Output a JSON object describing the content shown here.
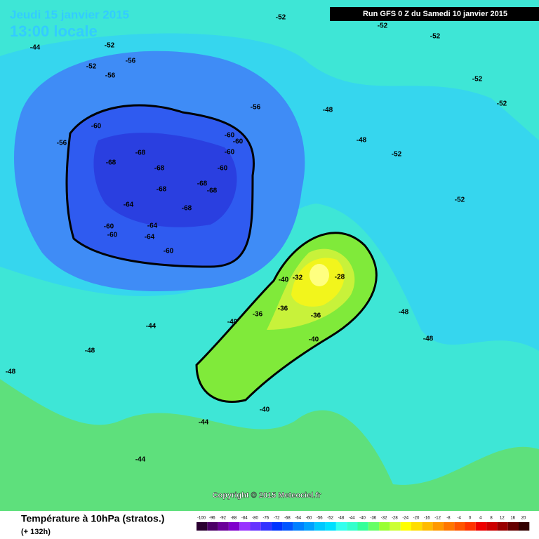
{
  "header": {
    "date": "Jeudi 15 janvier 2015",
    "time": "13:00 locale",
    "run": "Run GFS 0 Z du Samedi 10 janvier 2015"
  },
  "footer": {
    "title": "Température à 10hPa (stratos.)",
    "lead": "(+ 132h)",
    "copyright": "Copyright © 2015 Meteociel.fr"
  },
  "legend": {
    "ticks": [
      -100,
      -96,
      -92,
      -88,
      -84,
      -80,
      -76,
      -72,
      -68,
      -64,
      -60,
      -56,
      -52,
      -48,
      -44,
      -40,
      -36,
      -32,
      -28,
      -24,
      -20,
      -16,
      -12,
      -8,
      -4,
      0,
      4,
      8,
      12,
      16,
      20
    ],
    "colors": [
      "#2a0030",
      "#4b0066",
      "#6a0099",
      "#8000cc",
      "#9933ff",
      "#6633ff",
      "#3333ff",
      "#0033ff",
      "#0055ff",
      "#0080ff",
      "#00a0ff",
      "#00c8ff",
      "#00e0ff",
      "#33ffee",
      "#33ffcc",
      "#33ff99",
      "#66ff66",
      "#99ff33",
      "#ccff33",
      "#ffff00",
      "#ffdd00",
      "#ffbb00",
      "#ff9900",
      "#ff7700",
      "#ff5500",
      "#ff3300",
      "#ee0000",
      "#cc0000",
      "#990000",
      "#660000",
      "#330000"
    ]
  },
  "contour_labels": [
    -60,
    -68,
    -68,
    -68,
    -68,
    -68,
    -68,
    -68,
    -64,
    -64,
    -64,
    -60,
    -60,
    -60,
    -60,
    -60,
    -60,
    -60,
    -56,
    -56,
    -56,
    -56,
    -52,
    -52,
    -52,
    -52,
    -52,
    -52,
    -52,
    -52,
    -52,
    -48,
    -48,
    -48,
    -48,
    -48,
    -48,
    -44,
    -44,
    -44,
    -44,
    -40,
    -40,
    -40,
    -40,
    -36,
    -36,
    -36,
    -32,
    -28
  ]
}
